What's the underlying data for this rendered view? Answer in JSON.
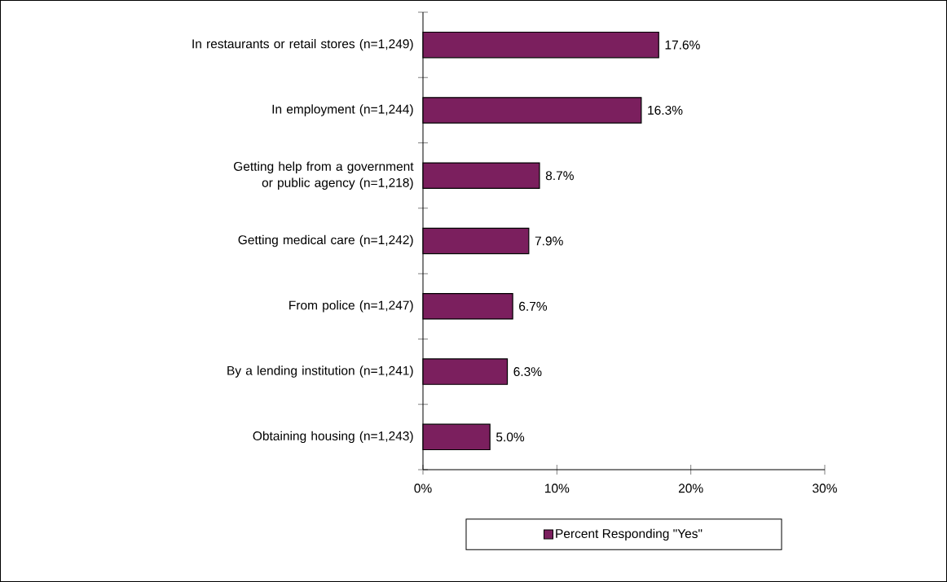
{
  "chart_data": {
    "type": "bar",
    "orientation": "horizontal",
    "categories": [
      "In restaurants or retail stores (n=1,249)",
      "In employment (n=1,244)",
      "Getting help from a government or public agency (n=1,218)",
      "Getting medical care (n=1,242)",
      "From police (n=1,247)",
      "By a lending institution (n=1,241)",
      "Obtaining housing (n=1,243)"
    ],
    "series": [
      {
        "name": "Percent Responding \"Yes\"",
        "color": "#7b1f5e",
        "values": [
          17.6,
          16.3,
          8.7,
          7.9,
          6.7,
          6.3,
          5.0
        ],
        "value_labels": [
          "17.6%",
          "16.3%",
          "8.7%",
          "7.9%",
          "6.7%",
          "6.3%",
          "5.0%"
        ]
      }
    ],
    "xlim": [
      0,
      30
    ],
    "xticks": [
      {
        "value": 0,
        "label": "0%"
      },
      {
        "value": 10,
        "label": "10%"
      },
      {
        "value": 20,
        "label": "20%"
      },
      {
        "value": 30,
        "label": "30%"
      }
    ],
    "grid": false,
    "legend": "bottom"
  }
}
